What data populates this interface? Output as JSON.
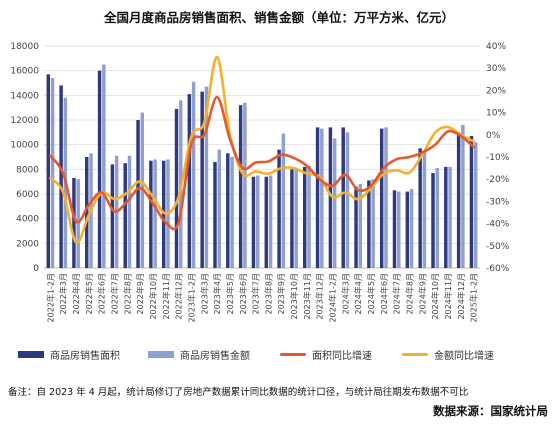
{
  "chart_data": {
    "type": "bar",
    "title": "全国月度商品房销售面积、销售金额（单位：万平方米、亿元）",
    "categories": [
      "2022年1-2月",
      "2022年3月",
      "2022年4月",
      "2022年5月",
      "2022年6月",
      "2022年7月",
      "2022年8月",
      "2022年9月",
      "2022年10月",
      "2022年11月",
      "2022年12月",
      "2023年1-2月",
      "2023年3月",
      "2023年4月",
      "2023年5月",
      "2023年6月",
      "2023年7月",
      "2023年8月",
      "2023年9月",
      "2023年10月",
      "2023年11月",
      "2023年12月",
      "2024年1-2月",
      "2024年3月",
      "2024年4月",
      "2024年5月",
      "2024年6月",
      "2024年7月",
      "2024年8月",
      "2024年9月",
      "2024年10月",
      "2024年11月",
      "2024年12月",
      "2025年1-2月"
    ],
    "series": [
      {
        "name": "商品房销售面积",
        "axis": "left",
        "color": "#2f3a7e",
        "values": [
          15700,
          14800,
          7300,
          9000,
          16000,
          8400,
          8500,
          12000,
          8700,
          8700,
          12900,
          14100,
          14300,
          8600,
          9300,
          13200,
          7400,
          7400,
          9600,
          8000,
          8200,
          11400,
          11400,
          11400,
          6600,
          7100,
          11300,
          6300,
          6200,
          9700,
          7700,
          8200,
          11000,
          10700
        ]
      },
      {
        "name": "商品房销售金额",
        "axis": "left",
        "color": "#8f9fd0",
        "values": [
          15400,
          13800,
          7200,
          9300,
          16500,
          9100,
          9100,
          12600,
          8800,
          8800,
          13600,
          15100,
          14700,
          9600,
          9000,
          13400,
          7500,
          7500,
          10900,
          8100,
          8300,
          11300,
          10500,
          11000,
          6800,
          7200,
          11400,
          6200,
          6400,
          9400,
          8100,
          8200,
          11600,
          10200
        ]
      },
      {
        "name": "面积同比增速",
        "axis": "right",
        "color": "#e25a2e",
        "values": [
          -9.5,
          -17.5,
          -39,
          -31.5,
          -26,
          -34.5,
          -30,
          -24,
          -31,
          -39.5,
          -39.5,
          -4,
          0,
          17,
          -2,
          -15,
          -12.5,
          -12,
          -9,
          -10.5,
          -14,
          -20,
          -23,
          -18,
          -25,
          -23,
          -15,
          -11,
          -10,
          -8,
          -4.5,
          1.5,
          -0.5,
          -5.5
        ]
      },
      {
        "name": "金额同比增速",
        "axis": "right",
        "color": "#f2b134",
        "values": [
          -19.5,
          -26,
          -48.5,
          -36,
          -26,
          -29,
          -26,
          -21,
          -28,
          -35.5,
          -28,
          -0.5,
          5.5,
          35,
          0,
          -17.5,
          -16.5,
          -17.5,
          -15,
          -15,
          -17.5,
          -19,
          -28,
          -26,
          -29,
          -24,
          -17.5,
          -16,
          -17,
          -9,
          1,
          3.5,
          0,
          -3
        ]
      }
    ],
    "y_left": {
      "min": 0,
      "max": 18000,
      "step": 2000,
      "ticks": [
        "0",
        "2000",
        "4000",
        "6000",
        "8000",
        "10000",
        "12000",
        "14000",
        "16000",
        "18000"
      ]
    },
    "y_right": {
      "min": -60,
      "max": 40,
      "step": 10,
      "ticks": [
        "-60%",
        "-50%",
        "-40%",
        "-30%",
        "-20%",
        "-10%",
        "0%",
        "10%",
        "20%",
        "30%",
        "40%"
      ]
    },
    "grid": true,
    "legend": "bottom",
    "legend_labels": [
      "商品房销售面积",
      "商品房销售金额",
      "面积同比增速",
      "金额同比增速"
    ]
  },
  "footnote": "备注：自 2023 年 4 月起，统计局修订了房地产数据累计同比数据的统计口径，与统计局往期发布数据不可比",
  "source": "数据来源：国家统计局"
}
